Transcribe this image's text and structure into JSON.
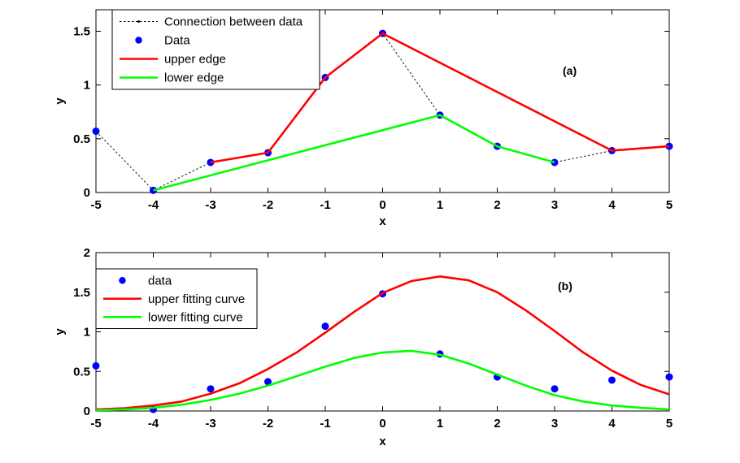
{
  "chart_data": [
    {
      "type": "line",
      "panel_label": "(a)",
      "xlabel": "x",
      "ylabel": "y",
      "xlim": [
        -5,
        5
      ],
      "ylim": [
        0,
        1.7
      ],
      "xticks": [
        "-5",
        "-4",
        "-3",
        "-2",
        "-1",
        "0",
        "1",
        "2",
        "3",
        "4",
        "5"
      ],
      "yticks": [
        "0",
        "0.5",
        "1",
        "1.5"
      ],
      "legend_position": "top-left",
      "series": [
        {
          "name": "Connection between data",
          "style": "dotted",
          "color": "#000000",
          "x": [
            -5,
            -4,
            -3,
            -2,
            -1,
            0,
            1,
            2,
            3,
            4,
            5
          ],
          "y": [
            0.57,
            0.02,
            0.28,
            0.37,
            1.07,
            1.48,
            0.72,
            0.43,
            0.28,
            0.39,
            0.43
          ]
        },
        {
          "name": "Data",
          "style": "markers",
          "color": "#0000ff",
          "x": [
            -5,
            -4,
            -3,
            -2,
            -1,
            0,
            1,
            2,
            3,
            4,
            5
          ],
          "y": [
            0.57,
            0.02,
            0.28,
            0.37,
            1.07,
            1.48,
            0.72,
            0.43,
            0.28,
            0.39,
            0.43
          ]
        },
        {
          "name": "upper edge",
          "style": "solid",
          "color": "#ff0000",
          "x": [
            -3,
            -2,
            -1,
            0,
            4,
            5
          ],
          "y": [
            0.28,
            0.37,
            1.07,
            1.48,
            0.39,
            0.43
          ]
        },
        {
          "name": "lower edge",
          "style": "solid",
          "color": "#00ff00",
          "x": [
            -4,
            1,
            2,
            3
          ],
          "y": [
            0.02,
            0.72,
            0.43,
            0.28
          ]
        }
      ]
    },
    {
      "type": "line",
      "panel_label": "(b)",
      "xlabel": "x",
      "ylabel": "y",
      "xlim": [
        -5,
        5
      ],
      "ylim": [
        0,
        2
      ],
      "xticks": [
        "-5",
        "-4",
        "-3",
        "-2",
        "-1",
        "0",
        "1",
        "2",
        "3",
        "4",
        "5"
      ],
      "yticks": [
        "0",
        "0.5",
        "1",
        "1.5",
        "2"
      ],
      "legend_position": "top-left",
      "series": [
        {
          "name": "data",
          "style": "markers",
          "color": "#0000ff",
          "x": [
            -5,
            -4,
            -3,
            -2,
            -1,
            0,
            1,
            2,
            3,
            4,
            5
          ],
          "y": [
            0.57,
            0.02,
            0.28,
            0.37,
            1.07,
            1.48,
            0.72,
            0.43,
            0.28,
            0.39,
            0.43
          ]
        },
        {
          "name": "upper fitting curve",
          "style": "solid",
          "color": "#ff0000",
          "x": [
            -5,
            -4.5,
            -4,
            -3.5,
            -3,
            -2.5,
            -2,
            -1.5,
            -1,
            -0.5,
            0,
            0.5,
            1,
            1.5,
            2,
            2.5,
            3,
            3.5,
            4,
            4.5,
            5
          ],
          "y": [
            0.02,
            0.035,
            0.07,
            0.12,
            0.22,
            0.35,
            0.53,
            0.74,
            0.99,
            1.25,
            1.49,
            1.64,
            1.7,
            1.65,
            1.5,
            1.27,
            1.01,
            0.74,
            0.51,
            0.33,
            0.21
          ]
        },
        {
          "name": "lower fitting curve",
          "style": "solid",
          "color": "#00ff00",
          "x": [
            -5,
            -4.5,
            -4,
            -3.5,
            -3,
            -2.5,
            -2,
            -1.5,
            -1,
            -0.5,
            0,
            0.5,
            1,
            1.5,
            2,
            2.5,
            3,
            3.5,
            4,
            4.5,
            5
          ],
          "y": [
            0.01,
            0.02,
            0.04,
            0.08,
            0.14,
            0.22,
            0.32,
            0.44,
            0.56,
            0.67,
            0.74,
            0.76,
            0.71,
            0.6,
            0.46,
            0.32,
            0.2,
            0.12,
            0.07,
            0.04,
            0.02
          ]
        }
      ]
    }
  ]
}
